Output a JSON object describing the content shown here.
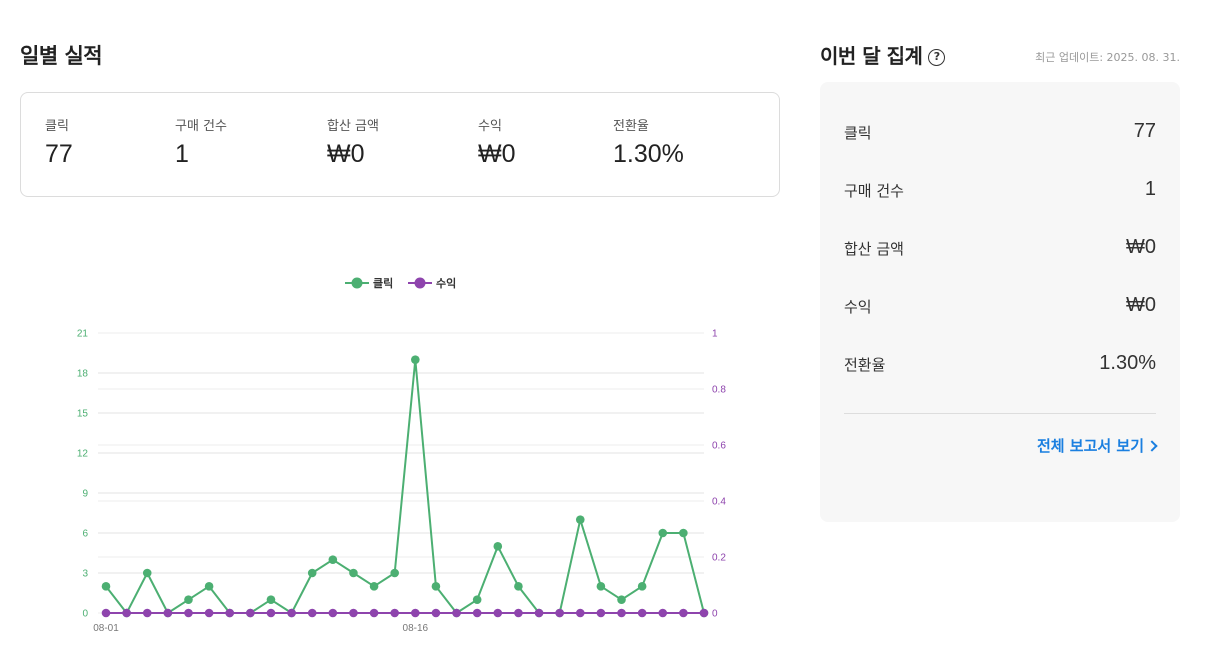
{
  "daily": {
    "title": "일별 실적",
    "kpis": [
      {
        "label": "클릭",
        "value": "77"
      },
      {
        "label": "구매 건수",
        "value": "1"
      },
      {
        "label": "합산 금액",
        "value": "₩0"
      },
      {
        "label": "수익",
        "value": "₩0"
      },
      {
        "label": "전환율",
        "value": "1.30%"
      }
    ]
  },
  "monthly": {
    "title": "이번 달 집계",
    "help_icon": "question-circle-icon",
    "updated": "최근 업데이트: 2025. 08. 31.",
    "rows": [
      {
        "label": "클릭",
        "value": "77"
      },
      {
        "label": "구매 건수",
        "value": "1"
      },
      {
        "label": "합산 금액",
        "value": "₩0"
      },
      {
        "label": "수익",
        "value": "₩0"
      },
      {
        "label": "전환율",
        "value": "1.30%"
      }
    ],
    "report_link": "전체 보고서 보기"
  },
  "chart_data": {
    "type": "line",
    "x": [
      "08-01",
      "08-02",
      "08-03",
      "08-04",
      "08-05",
      "08-06",
      "08-07",
      "08-08",
      "08-09",
      "08-10",
      "08-11",
      "08-12",
      "08-13",
      "08-14",
      "08-15",
      "08-16",
      "08-17",
      "08-18",
      "08-19",
      "08-20",
      "08-21",
      "08-22",
      "08-23",
      "08-24",
      "08-25",
      "08-26",
      "08-27",
      "08-28",
      "08-29",
      "08-30"
    ],
    "x_tick_labels": [
      "08-01",
      "08-16"
    ],
    "series": [
      {
        "name": "클릭",
        "axis": "left",
        "color": "#4caf72",
        "values": [
          2,
          0,
          3,
          0,
          1,
          2,
          0,
          0,
          1,
          0,
          3,
          4,
          3,
          2,
          3,
          19,
          2,
          0,
          1,
          5,
          2,
          0,
          0,
          7,
          2,
          1,
          2,
          6,
          6,
          0
        ]
      },
      {
        "name": "수익",
        "axis": "right",
        "color": "#8e44ad",
        "values": [
          0,
          0,
          0,
          0,
          0,
          0,
          0,
          0,
          0,
          0,
          0,
          0,
          0,
          0,
          0,
          0,
          0,
          0,
          0,
          0,
          0,
          0,
          0,
          0,
          0,
          0,
          0,
          0,
          0,
          0
        ]
      }
    ],
    "y_left": {
      "ticks": [
        "0",
        "3",
        "6",
        "9",
        "12",
        "15",
        "18",
        "21"
      ],
      "ylim": [
        0,
        21
      ],
      "color": "#4caf72"
    },
    "y_right": {
      "ticks": [
        "0",
        "0.2",
        "0.4",
        "0.6",
        "0.8",
        "1"
      ],
      "ylim": [
        0,
        1
      ],
      "color": "#8e44ad"
    },
    "legend_position": "top-center",
    "grid": true
  }
}
